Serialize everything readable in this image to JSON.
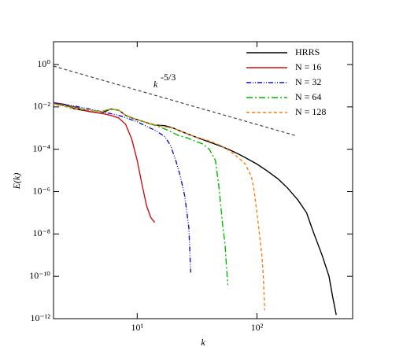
{
  "chart_data": {
    "type": "line",
    "xlabel": "k",
    "ylabel": "E(k)",
    "xscale": "log",
    "yscale": "log",
    "xlim": [
      2,
      630
    ],
    "ylim": [
      1e-12,
      12
    ],
    "xticks": [
      {
        "value": 10,
        "label": "10¹"
      },
      {
        "value": 100,
        "label": "10²"
      }
    ],
    "yticks": [
      {
        "value": 1,
        "label": "10⁰"
      },
      {
        "value": 0.01,
        "label": "10⁻²"
      },
      {
        "value": 0.0001,
        "label": "10⁻⁴"
      },
      {
        "value": 1e-06,
        "label": "10⁻⁶"
      },
      {
        "value": 1e-08,
        "label": "10⁻⁸"
      },
      {
        "value": 1e-10,
        "label": "10⁻¹⁰"
      },
      {
        "value": 1e-12,
        "label": "10⁻¹²"
      }
    ],
    "legend": "upper right",
    "guide": {
      "x": [
        2,
        208
      ],
      "values": [
        0.84,
        0.00045
      ],
      "color": "#444444",
      "dash": "4,3",
      "label": {
        "text": "k",
        "superscript": "-5/3"
      }
    },
    "series": [
      {
        "name": "HRRS",
        "color": "#000000",
        "dash": "none",
        "x": [
          2,
          2.5,
          3,
          3.5,
          4,
          5,
          6,
          7,
          8,
          9,
          10,
          12,
          14,
          17,
          20,
          25,
          30,
          40,
          50,
          60,
          70,
          80,
          100,
          120,
          150,
          180,
          220,
          260,
          280,
          300,
          350,
          400,
          430,
          460
        ],
        "values": [
          0.016,
          0.013,
          0.008,
          0.007,
          0.006,
          0.005,
          0.008,
          0.007,
          0.004,
          0.003,
          0.0025,
          0.0018,
          0.0014,
          0.0013,
          0.001,
          0.0006,
          0.0004,
          0.00022,
          0.00014,
          9e-05,
          6e-05,
          4e-05,
          2e-05,
          1e-05,
          4e-06,
          1.5e-06,
          4e-07,
          1e-07,
          3e-08,
          1e-08,
          1e-09,
          1e-10,
          1e-11,
          1.5e-12
        ]
      },
      {
        "name": "N = 16",
        "color": "#cc1111",
        "dash": "none",
        "x": [
          2,
          3,
          4,
          5,
          6,
          7,
          8,
          9,
          10,
          11,
          12,
          13,
          14
        ],
        "values": [
          0.016,
          0.01,
          0.006,
          0.005,
          0.004,
          0.003,
          0.0015,
          0.0003,
          3e-05,
          2e-06,
          2e-07,
          6e-08,
          3.5e-08
        ]
      },
      {
        "name": "N = 32",
        "color": "#1111cc",
        "dash": "6,2,1,2,1,2",
        "x": [
          2,
          3,
          4,
          5,
          7,
          10,
          12,
          14,
          17,
          19,
          21,
          23,
          25,
          27,
          28
        ],
        "values": [
          0.015,
          0.011,
          0.008,
          0.006,
          0.004,
          0.002,
          0.0012,
          0.0008,
          0.0004,
          0.00015,
          3e-05,
          5e-06,
          6e-07,
          2e-08,
          1.5e-10
        ]
      },
      {
        "name": "N = 64",
        "color": "#00bb00",
        "dash": "8,3,2,3",
        "x": [
          2,
          3,
          4,
          5,
          6,
          7,
          8,
          10,
          12,
          15,
          18,
          22,
          26,
          30,
          35,
          40,
          45,
          48,
          50,
          52,
          54,
          56,
          57
        ],
        "values": [
          0.014,
          0.009,
          0.007,
          0.006,
          0.008,
          0.007,
          0.004,
          0.0025,
          0.0018,
          0.0012,
          0.0008,
          0.00045,
          0.00035,
          0.00025,
          0.00018,
          0.0001,
          3e-05,
          2e-06,
          2e-07,
          2e-08,
          4e-09,
          2e-10,
          4e-11
        ]
      },
      {
        "name": "N = 128",
        "color": "#ff7f0e",
        "dash": "4,3",
        "x": [
          2,
          3,
          4,
          5,
          6,
          7,
          8,
          10,
          12,
          15,
          20,
          25,
          30,
          40,
          50,
          60,
          70,
          80,
          90,
          95,
          100,
          105,
          110,
          113,
          115,
          116
        ],
        "values": [
          0.014,
          0.008,
          0.007,
          0.006,
          0.008,
          0.007,
          0.004,
          0.0025,
          0.0018,
          0.0013,
          0.001,
          0.0006,
          0.0004,
          0.00025,
          0.00015,
          8e-05,
          4e-05,
          2e-05,
          5e-06,
          1e-06,
          1e-07,
          1e-08,
          1e-09,
          1e-10,
          1e-11,
          2.5e-12
        ]
      }
    ]
  }
}
